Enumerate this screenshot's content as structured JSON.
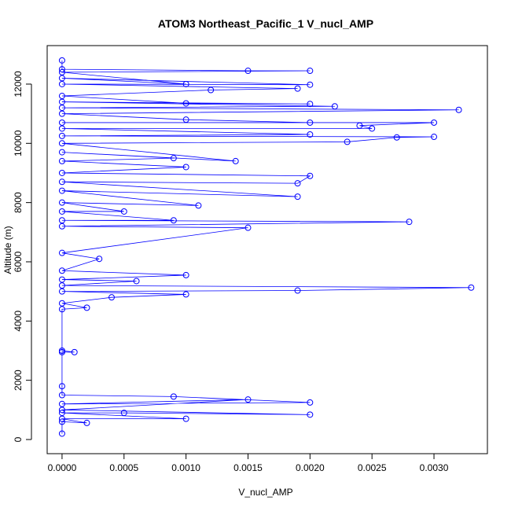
{
  "chart_data": {
    "type": "line",
    "title": "ATOM3 Northeast_Pacific_1 V_nucl_AMP",
    "x_label": "V_nucl_AMP",
    "y_label": "Altitude (m)",
    "xlim": [
      -0.00012,
      0.003431
    ],
    "ylim": [
      -478,
      13300
    ],
    "xticks": [
      {
        "value": 0,
        "label": "0.0000"
      },
      {
        "value": 0.0005,
        "label": "0.0005"
      },
      {
        "value": 0.001,
        "label": "0.0010"
      },
      {
        "value": 0.0015,
        "label": "0.0015"
      },
      {
        "value": 0.002,
        "label": "0.0020"
      },
      {
        "value": 0.0025,
        "label": "0.0025"
      },
      {
        "value": 0.003,
        "label": "0.0030"
      }
    ],
    "yticks": [
      0,
      2000,
      4000,
      6000,
      8000,
      10000,
      12000
    ],
    "series": [
      {
        "name": "V_nucl_AMP",
        "color": "#0000ff",
        "x": [
          0,
          0,
          0.0002,
          0,
          0.001,
          0,
          0.0005,
          0.002,
          0,
          0.0015,
          0,
          0.002,
          0.0009,
          0,
          0,
          0,
          0.0001,
          0,
          0,
          0.0002,
          0,
          0.0004,
          0.001,
          0,
          0.0019,
          0.0033,
          0,
          0.0006,
          0,
          0.001,
          0,
          0.0003,
          0,
          0.0015,
          0,
          0.0028,
          0,
          0.0009,
          0,
          0.0005,
          0,
          0.0011,
          0,
          0.0019,
          0,
          0.0019,
          0.002,
          0,
          0.001,
          0,
          0.0009,
          0,
          0.0014,
          0,
          0.0023,
          0.0027,
          0.003,
          0,
          0.002,
          0,
          0.0025,
          0.0024,
          0.003,
          0,
          0.002,
          0.001,
          0,
          0.0032,
          0,
          0.0022,
          0,
          0.002,
          0.001,
          0,
          0.0012,
          0.0019,
          0,
          0.002,
          0,
          0.001,
          0,
          0.002,
          0.0015,
          0,
          0
        ],
        "values": [
          200,
          600,
          560,
          700,
          700,
          900,
          900,
          840,
          1000,
          1350,
          1200,
          1250,
          1450,
          1500,
          1800,
          2950,
          2950,
          3000,
          4400,
          4450,
          4600,
          4800,
          4900,
          5000,
          5030,
          5130,
          5200,
          5350,
          5400,
          5550,
          5700,
          6100,
          6300,
          7150,
          7200,
          7350,
          7400,
          7400,
          7700,
          7700,
          8000,
          7900,
          8400,
          8200,
          8700,
          8650,
          8900,
          9000,
          9200,
          9400,
          9500,
          9700,
          9400,
          10000,
          10050,
          10200,
          10220,
          10250,
          10300,
          10500,
          10500,
          10600,
          10700,
          10700,
          10700,
          10800,
          11000,
          11130,
          11200,
          11250,
          11400,
          11330,
          11350,
          11600,
          11800,
          11850,
          12000,
          11980,
          12200,
          12000,
          12400,
          12450,
          12450,
          12500,
          12800
        ]
      }
    ]
  }
}
